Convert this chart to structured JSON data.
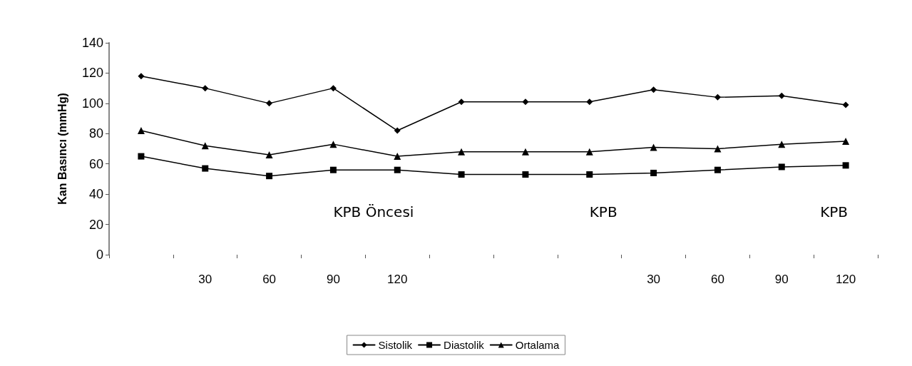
{
  "chart_data": {
    "type": "line",
    "ylabel": "Kan Basıncı (mmHg)",
    "categories": [
      null,
      "30",
      "60",
      "90",
      "120",
      null,
      null,
      null,
      "30",
      "60",
      "90",
      "120"
    ],
    "series": [
      {
        "name": "Sistolik",
        "color": "#000000",
        "marker": "diamond",
        "values": [
          118,
          110,
          100,
          110,
          82,
          101,
          101,
          101,
          109,
          104,
          105,
          99
        ]
      },
      {
        "name": "Diastolik",
        "color": "#000000",
        "marker": "square",
        "values": [
          65,
          57,
          52,
          56,
          56,
          53,
          53,
          53,
          54,
          56,
          58,
          59
        ]
      },
      {
        "name": "Ortalama",
        "color": "#000000",
        "marker": "triangle",
        "values": [
          82,
          72,
          66,
          73,
          65,
          68,
          68,
          68,
          71,
          70,
          73,
          75
        ]
      }
    ],
    "ylim": [
      0,
      140
    ],
    "yticks": [
      0,
      20,
      40,
      60,
      80,
      100,
      120,
      140
    ],
    "grid": false,
    "legend": "bottom",
    "line_style": "solid",
    "annotations": [
      "KPB Öncesi",
      "KPB",
      "KPB"
    ]
  }
}
